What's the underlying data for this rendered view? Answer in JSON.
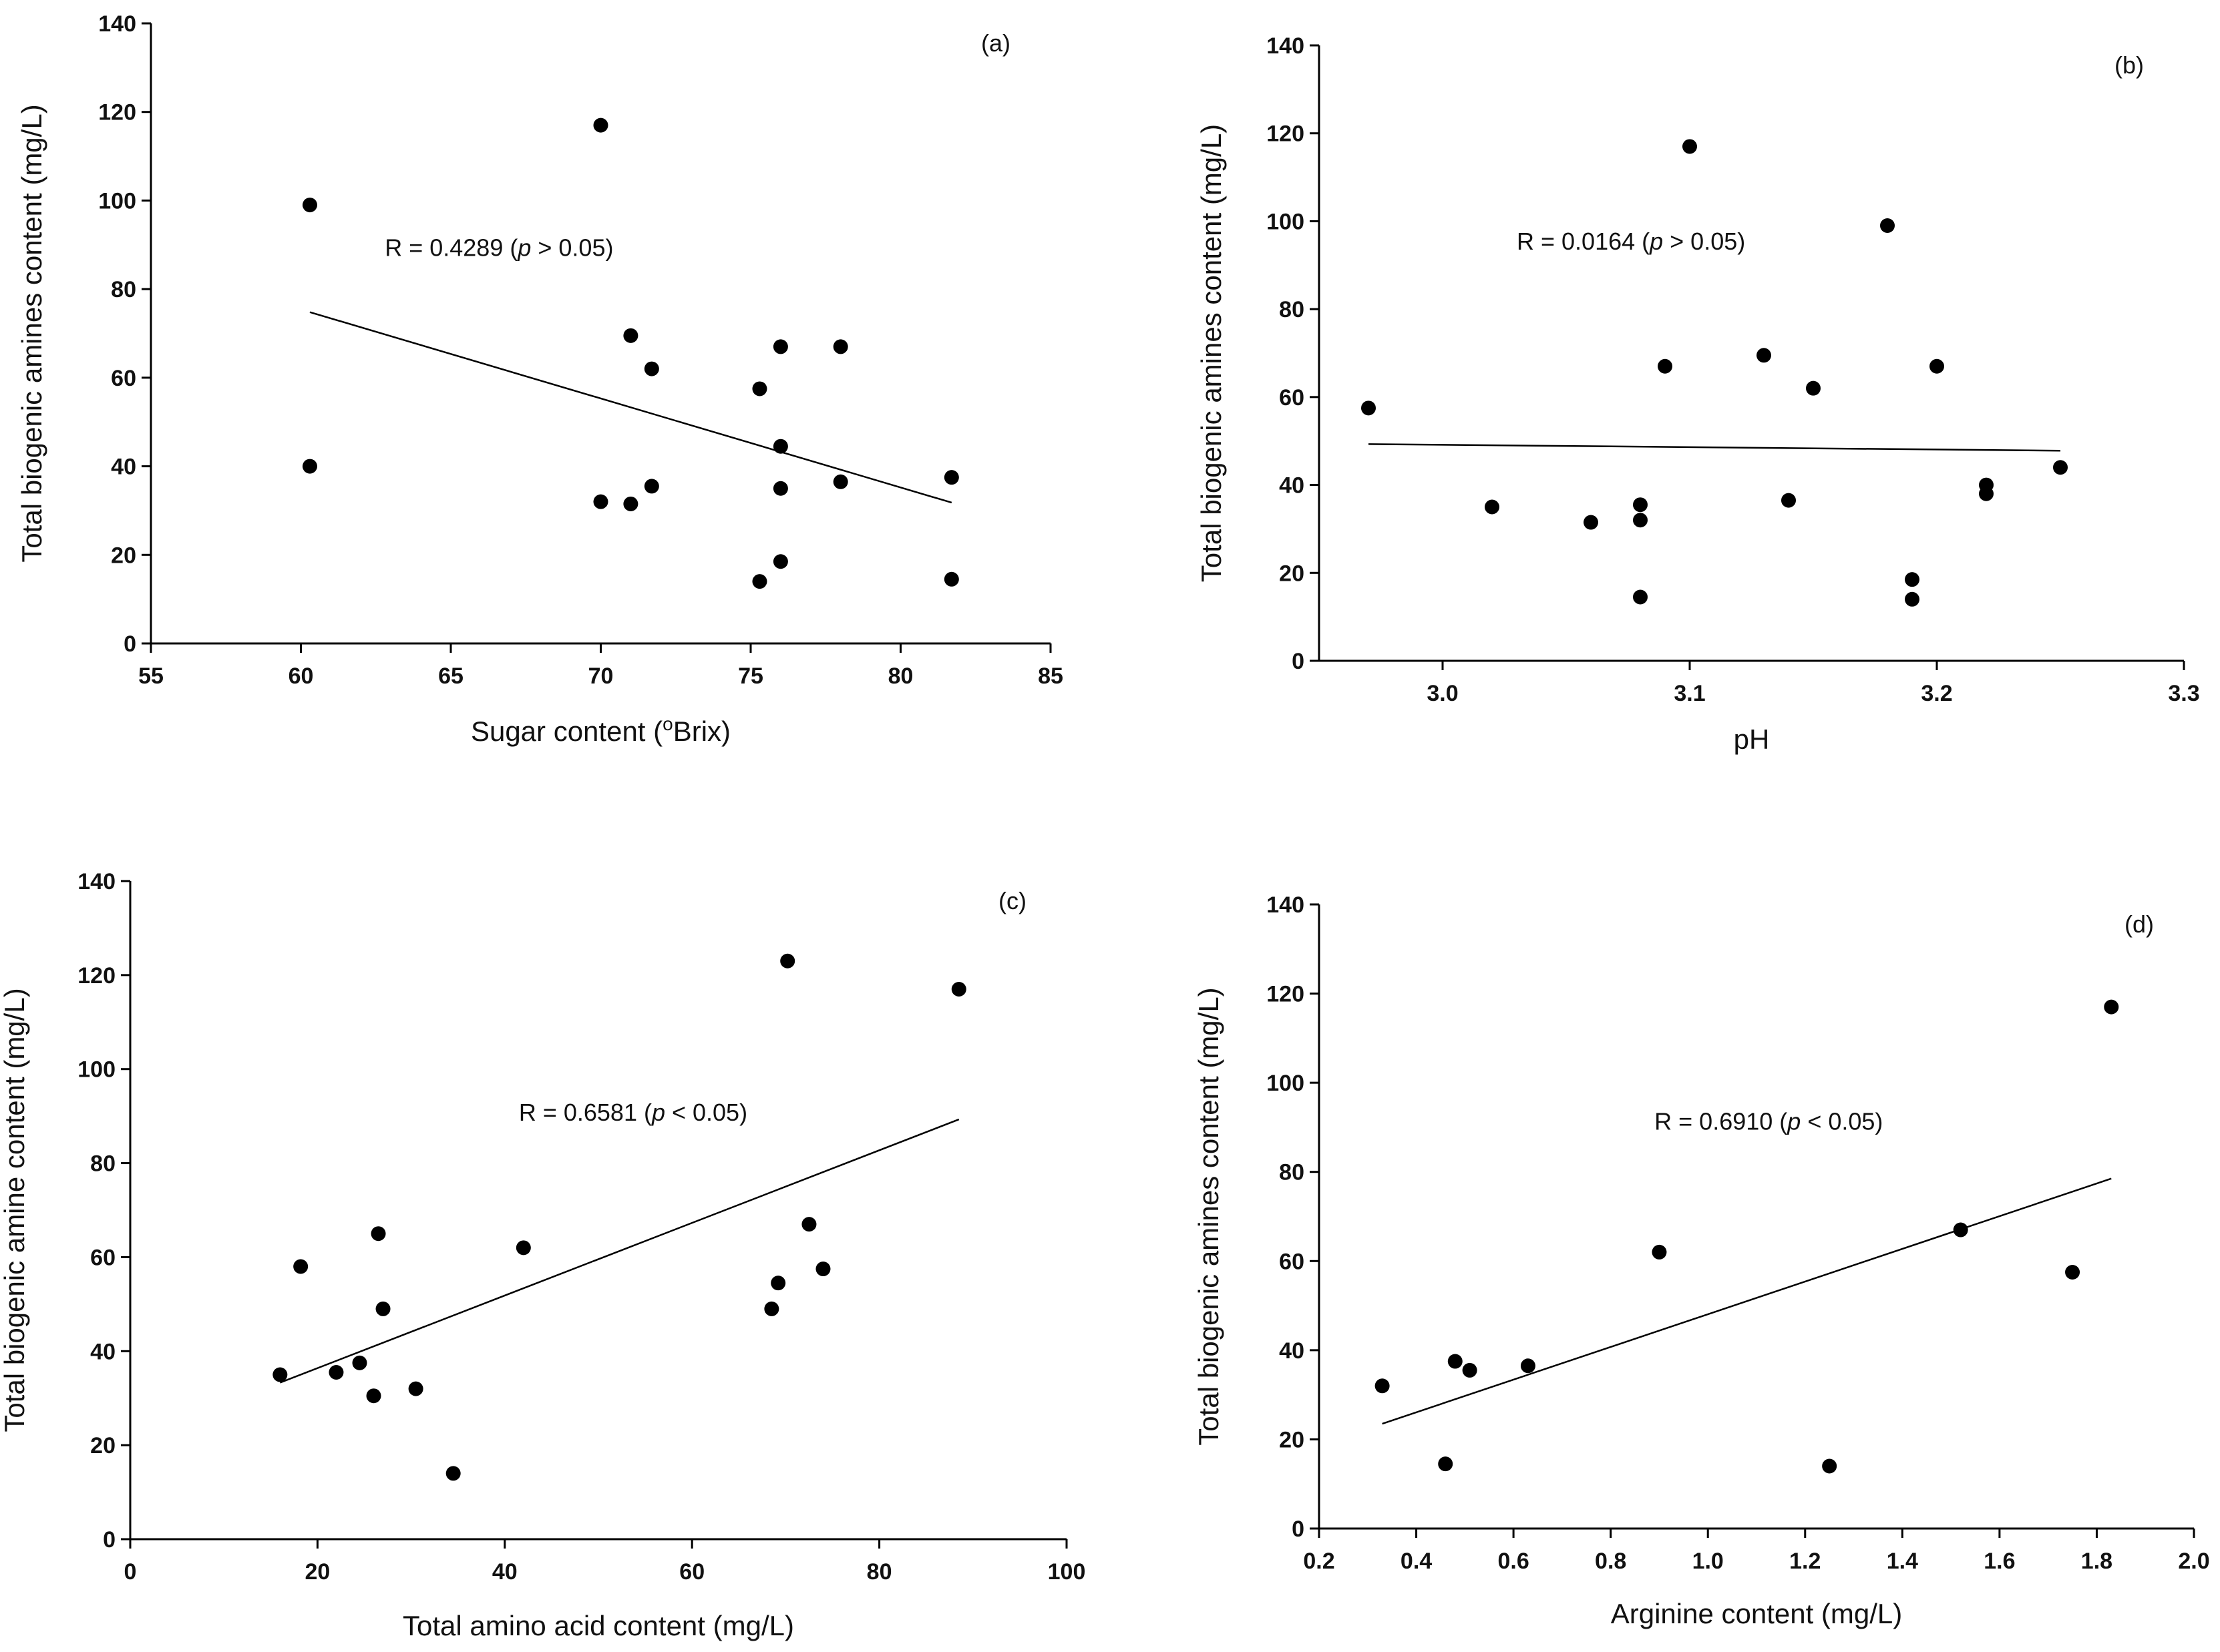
{
  "chart_data": [
    {
      "type": "scatter",
      "panel": "(a)",
      "xlabel": "Sugar content (°Brix)",
      "ylabel": "Total biogenic amines content (mg/L)",
      "xlim": [
        55,
        85
      ],
      "ylim": [
        0,
        140
      ],
      "xticks": [
        55,
        60,
        65,
        70,
        75,
        80,
        85
      ],
      "yticks": [
        0,
        20,
        40,
        60,
        80,
        100,
        120,
        140
      ],
      "xtick_labels": [
        "55",
        "60",
        "65",
        "70",
        "75",
        "80",
        "85"
      ],
      "ytick_labels": [
        "0",
        "20",
        "40",
        "60",
        "80",
        "100",
        "120",
        "140"
      ],
      "annotation": "R = 0.4289 (p > 0.05)",
      "annotation_pos": [
        62.8,
        87.5
      ],
      "points": [
        [
          60.3,
          99
        ],
        [
          60.3,
          40
        ],
        [
          70,
          117
        ],
        [
          70,
          32
        ],
        [
          71,
          69.5
        ],
        [
          71,
          31.5
        ],
        [
          71.7,
          62
        ],
        [
          71.7,
          35.5
        ],
        [
          75.3,
          57.5
        ],
        [
          75.3,
          14
        ],
        [
          76,
          67
        ],
        [
          76,
          44.5
        ],
        [
          76,
          35
        ],
        [
          76,
          18.5
        ],
        [
          78,
          67
        ],
        [
          78,
          36.5
        ],
        [
          81.7,
          37.5
        ],
        [
          81.7,
          14.5
        ]
      ],
      "trend": [
        [
          60.3,
          74.8
        ],
        [
          81.7,
          31.8
        ]
      ],
      "grid": false
    },
    {
      "type": "scatter",
      "panel": "(b)",
      "xlabel": "pH",
      "ylabel": "Total biogenic amines content (mg/L)",
      "xlim": [
        2.95,
        3.3
      ],
      "ylim": [
        0,
        140
      ],
      "xticks": [
        3.0,
        3.1,
        3.2,
        3.3
      ],
      "yticks": [
        0,
        20,
        40,
        60,
        80,
        100,
        120,
        140
      ],
      "xtick_labels": [
        "3.0",
        "3.1",
        "3.2",
        "3.3"
      ],
      "ytick_labels": [
        "0",
        "20",
        "40",
        "60",
        "80",
        "100",
        "120",
        "140"
      ],
      "annotation": "R =  0.0164 (p > 0.05)",
      "annotation_pos": [
        3.03,
        93.5
      ],
      "points": [
        [
          2.97,
          57.5
        ],
        [
          3.02,
          35
        ],
        [
          3.06,
          31.5
        ],
        [
          3.08,
          35.5
        ],
        [
          3.08,
          32
        ],
        [
          3.08,
          14.5
        ],
        [
          3.09,
          67
        ],
        [
          3.1,
          117
        ],
        [
          3.13,
          69.5
        ],
        [
          3.14,
          36.5
        ],
        [
          3.15,
          62
        ],
        [
          3.18,
          99
        ],
        [
          3.19,
          18.5
        ],
        [
          3.19,
          14
        ],
        [
          3.2,
          67
        ],
        [
          3.22,
          40
        ],
        [
          3.22,
          38
        ],
        [
          3.25,
          44
        ]
      ],
      "trend": [
        [
          2.97,
          49.3
        ],
        [
          3.25,
          47.8
        ]
      ],
      "grid": false
    },
    {
      "type": "scatter",
      "panel": "(c)",
      "xlabel": "Total amino acid content (mg/L)",
      "ylabel": "Total biogenic amine content (mg/L)",
      "xlim": [
        0,
        100
      ],
      "ylim": [
        0,
        140
      ],
      "xticks": [
        0,
        20,
        40,
        60,
        80,
        100
      ],
      "yticks": [
        0,
        20,
        40,
        60,
        80,
        100,
        120,
        140
      ],
      "xtick_labels": [
        "0",
        "20",
        "40",
        "60",
        "80",
        "100"
      ],
      "ytick_labels": [
        "0",
        "20",
        "40",
        "60",
        "80",
        "100",
        "120",
        "140"
      ],
      "annotation": "R = 0.6581 (p < 0.05)",
      "annotation_pos": [
        41.5,
        89
      ],
      "points": [
        [
          16,
          35
        ],
        [
          18.2,
          58
        ],
        [
          22,
          35.5
        ],
        [
          24.5,
          37.5
        ],
        [
          26,
          30.5
        ],
        [
          26.5,
          65
        ],
        [
          27,
          49
        ],
        [
          30.5,
          32
        ],
        [
          34.5,
          14
        ],
        [
          42,
          62
        ],
        [
          68.5,
          49
        ],
        [
          69.2,
          54.5
        ],
        [
          70.2,
          123
        ],
        [
          72.5,
          67
        ],
        [
          74,
          57.5
        ],
        [
          88.5,
          117
        ]
      ],
      "trend": [
        [
          16,
          33.3
        ],
        [
          88.5,
          89.3
        ]
      ],
      "grid": false
    },
    {
      "type": "scatter",
      "panel": "(d)",
      "xlabel": "Arginine content (mg/L)",
      "ylabel": "Total biogenic amines content (mg/L)",
      "xlim": [
        0.2,
        2.0
      ],
      "ylim": [
        0,
        140
      ],
      "xticks": [
        0.2,
        0.4,
        0.6,
        0.8,
        1.0,
        1.2,
        1.4,
        1.6,
        1.8,
        2.0
      ],
      "yticks": [
        0,
        20,
        40,
        60,
        80,
        100,
        120,
        140
      ],
      "xtick_labels": [
        "0.2",
        "0.4",
        "0.6",
        "0.8",
        "1.0",
        "1.2",
        "1.4",
        "1.6",
        "1.8",
        "2.0"
      ],
      "ytick_labels": [
        "0",
        "20",
        "40",
        "60",
        "80",
        "100",
        "120",
        "140"
      ],
      "annotation": "R = 0.6910 (p < 0.05)",
      "annotation_pos": [
        0.89,
        89.5
      ],
      "points": [
        [
          0.33,
          32
        ],
        [
          0.46,
          14.5
        ],
        [
          0.48,
          37.5
        ],
        [
          0.51,
          35.5
        ],
        [
          0.63,
          36.5
        ],
        [
          0.9,
          62
        ],
        [
          1.25,
          14
        ],
        [
          1.52,
          67
        ],
        [
          1.75,
          57.5
        ],
        [
          1.83,
          117
        ]
      ],
      "trend": [
        [
          0.33,
          23.5
        ],
        [
          1.83,
          78.5
        ]
      ],
      "grid": false
    }
  ]
}
